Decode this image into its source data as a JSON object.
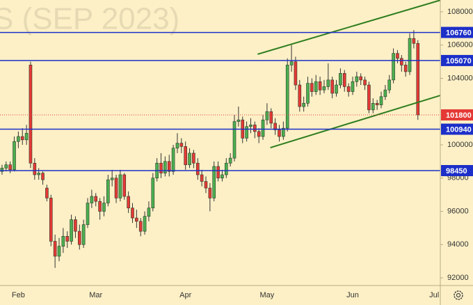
{
  "chart_data": {
    "type": "candlestick",
    "watermark": "S (SEP 2023)",
    "categories": [
      null,
      null,
      null,
      null,
      "Feb",
      null,
      null,
      null,
      null,
      null,
      null,
      null,
      null,
      null,
      null,
      null,
      null,
      null,
      null,
      null,
      null,
      null,
      null,
      "Mar",
      null,
      null,
      null,
      null,
      null,
      null,
      null,
      null,
      null,
      null,
      null,
      null,
      null,
      null,
      null,
      null,
      null,
      null,
      null,
      null,
      null,
      "Apr",
      null,
      null,
      null,
      null,
      null,
      null,
      null,
      null,
      null,
      null,
      null,
      null,
      null,
      null,
      null,
      null,
      null,
      null,
      null,
      "May",
      null,
      null,
      null,
      null,
      null,
      null,
      null,
      null,
      null,
      null,
      null,
      null,
      null,
      null,
      null,
      null,
      null,
      null,
      null,
      null,
      "Jun",
      null,
      null,
      null,
      null,
      null,
      null,
      null,
      null,
      null,
      null,
      null,
      null,
      null,
      null,
      null,
      null,
      null,
      null,
      null,
      "Jul",
      null
    ],
    "ohlc": [
      [
        98400,
        98800,
        98200,
        98600
      ],
      [
        98600,
        99000,
        98400,
        98800
      ],
      [
        98800,
        99000,
        98300,
        98500
      ],
      [
        98500,
        100500,
        98400,
        100200
      ],
      [
        100200,
        100800,
        99800,
        100500
      ],
      [
        100500,
        101000,
        100000,
        100300
      ],
      [
        100300,
        101200,
        100000,
        100700
      ],
      [
        104800,
        105000,
        98600,
        98900
      ],
      [
        98900,
        99200,
        97900,
        98200
      ],
      [
        98200,
        98600,
        97900,
        98300
      ],
      [
        98300,
        98400,
        97600,
        97900
      ],
      [
        97400,
        97600,
        96600,
        96800
      ],
      [
        96800,
        97000,
        93900,
        94200
      ],
      [
        94200,
        94600,
        92600,
        93300
      ],
      [
        93300,
        94400,
        93000,
        93900
      ],
      [
        93900,
        95000,
        93500,
        94500
      ],
      [
        94500,
        94800,
        93800,
        94200
      ],
      [
        94200,
        95800,
        94000,
        95500
      ],
      [
        95500,
        95700,
        94400,
        94800
      ],
      [
        94800,
        95200,
        93700,
        94000
      ],
      [
        94000,
        95500,
        93800,
        95200
      ],
      [
        95200,
        96800,
        95000,
        96500
      ],
      [
        96500,
        97300,
        96200,
        96900
      ],
      [
        96900,
        97100,
        96300,
        96600
      ],
      [
        96600,
        96800,
        95500,
        96000
      ],
      [
        96000,
        96900,
        95700,
        96500
      ],
      [
        96500,
        98200,
        96300,
        97900
      ],
      [
        97900,
        98500,
        97500,
        98000
      ],
      [
        98000,
        98200,
        96500,
        96800
      ],
      [
        96800,
        98500,
        96600,
        98200
      ],
      [
        98200,
        98300,
        96700,
        96900
      ],
      [
        96900,
        97200,
        95900,
        96200
      ],
      [
        96200,
        96500,
        95300,
        95600
      ],
      [
        95600,
        96100,
        95000,
        95400
      ],
      [
        95400,
        95600,
        94500,
        94800
      ],
      [
        94800,
        96000,
        94600,
        95700
      ],
      [
        95700,
        96600,
        95400,
        96200
      ],
      [
        96200,
        98300,
        96000,
        98000
      ],
      [
        98000,
        99200,
        97800,
        98900
      ],
      [
        98900,
        99500,
        98000,
        98300
      ],
      [
        98300,
        99300,
        98100,
        99000
      ],
      [
        99000,
        99400,
        98100,
        98400
      ],
      [
        98400,
        100000,
        98200,
        99800
      ],
      [
        99800,
        100700,
        99500,
        100100
      ],
      [
        100100,
        100400,
        99500,
        99900
      ],
      [
        99900,
        100200,
        98500,
        98800
      ],
      [
        98800,
        99800,
        98600,
        99500
      ],
      [
        99500,
        99700,
        98600,
        98900
      ],
      [
        98900,
        99200,
        97900,
        98200
      ],
      [
        98200,
        98500,
        97500,
        97800
      ],
      [
        97800,
        98100,
        97100,
        97400
      ],
      [
        97400,
        97700,
        96000,
        96800
      ],
      [
        96800,
        99000,
        96600,
        98700
      ],
      [
        98700,
        99000,
        97800,
        98000
      ],
      [
        98000,
        98500,
        97800,
        98200
      ],
      [
        98200,
        99200,
        98000,
        98900
      ],
      [
        98900,
        99500,
        98700,
        99200
      ],
      [
        99200,
        101800,
        99000,
        101400
      ],
      [
        101400,
        102300,
        101100,
        101500
      ],
      [
        101500,
        101700,
        100100,
        100400
      ],
      [
        100400,
        101400,
        100200,
        101100
      ],
      [
        101100,
        101600,
        100700,
        101200
      ],
      [
        101200,
        101400,
        100400,
        100800
      ],
      [
        100800,
        101000,
        100100,
        100500
      ],
      [
        100500,
        101800,
        100300,
        101500
      ],
      [
        101500,
        102500,
        101200,
        102000
      ],
      [
        102000,
        102200,
        101000,
        101300
      ],
      [
        101300,
        101600,
        100600,
        100900
      ],
      [
        100900,
        101200,
        100200,
        100500
      ],
      [
        100500,
        101400,
        100300,
        101000
      ],
      [
        101000,
        105200,
        100800,
        104800
      ],
      [
        104800,
        106000,
        104400,
        105000
      ],
      [
        105000,
        105300,
        103300,
        103600
      ],
      [
        103600,
        103900,
        102000,
        102300
      ],
      [
        102300,
        102900,
        102000,
        102500
      ],
      [
        102500,
        104100,
        102300,
        103700
      ],
      [
        103700,
        104000,
        102900,
        103200
      ],
      [
        103200,
        104200,
        103000,
        103800
      ],
      [
        103800,
        104100,
        103000,
        103300
      ],
      [
        103300,
        103900,
        103100,
        103500
      ],
      [
        103500,
        104900,
        103300,
        103900
      ],
      [
        103900,
        104100,
        102800,
        103100
      ],
      [
        103100,
        103900,
        102900,
        103600
      ],
      [
        103600,
        104600,
        103400,
        104300
      ],
      [
        104300,
        104500,
        103200,
        103500
      ],
      [
        103500,
        103700,
        102900,
        103200
      ],
      [
        103200,
        104100,
        103000,
        103800
      ],
      [
        103800,
        104400,
        103500,
        104100
      ],
      [
        104100,
        104300,
        103600,
        103900
      ],
      [
        103900,
        104100,
        103300,
        103600
      ],
      [
        103600,
        103800,
        101900,
        102100
      ],
      [
        102100,
        102800,
        101900,
        102500
      ],
      [
        102500,
        102700,
        102100,
        102400
      ],
      [
        102400,
        103200,
        102200,
        102900
      ],
      [
        102900,
        103600,
        102700,
        103300
      ],
      [
        103300,
        104200,
        103100,
        103900
      ],
      [
        103900,
        105800,
        103700,
        105500
      ],
      [
        105500,
        105700,
        104900,
        105200
      ],
      [
        105200,
        105400,
        104400,
        104800
      ],
      [
        104800,
        105000,
        104100,
        104400
      ],
      [
        104400,
        106700,
        104200,
        106400
      ],
      [
        106400,
        106900,
        105800,
        106100
      ],
      [
        106100,
        106300,
        101500,
        101800
      ],
      null,
      null,
      null,
      null,
      null
    ],
    "up_color": "#4caf50",
    "down_color": "#e53935",
    "wick_color": "#333333",
    "ylim": [
      91540,
      108710
    ],
    "yticks": [
      92000,
      94000,
      96000,
      98000,
      100000,
      104000,
      106000,
      108000
    ],
    "levels": {
      "color": "#1c2fc8",
      "values": [
        106760,
        105070,
        100940,
        98450
      ]
    },
    "last_price": {
      "color": "#e53935",
      "value": 101800
    },
    "trend_lines": {
      "color": "#2e7d1e",
      "lines": [
        {
          "x": [
            62.7,
            107.5
          ],
          "y": [
            105450,
            108700
          ]
        },
        {
          "x": [
            65.8,
            107.5
          ],
          "y": [
            99830,
            102970
          ]
        }
      ]
    }
  }
}
